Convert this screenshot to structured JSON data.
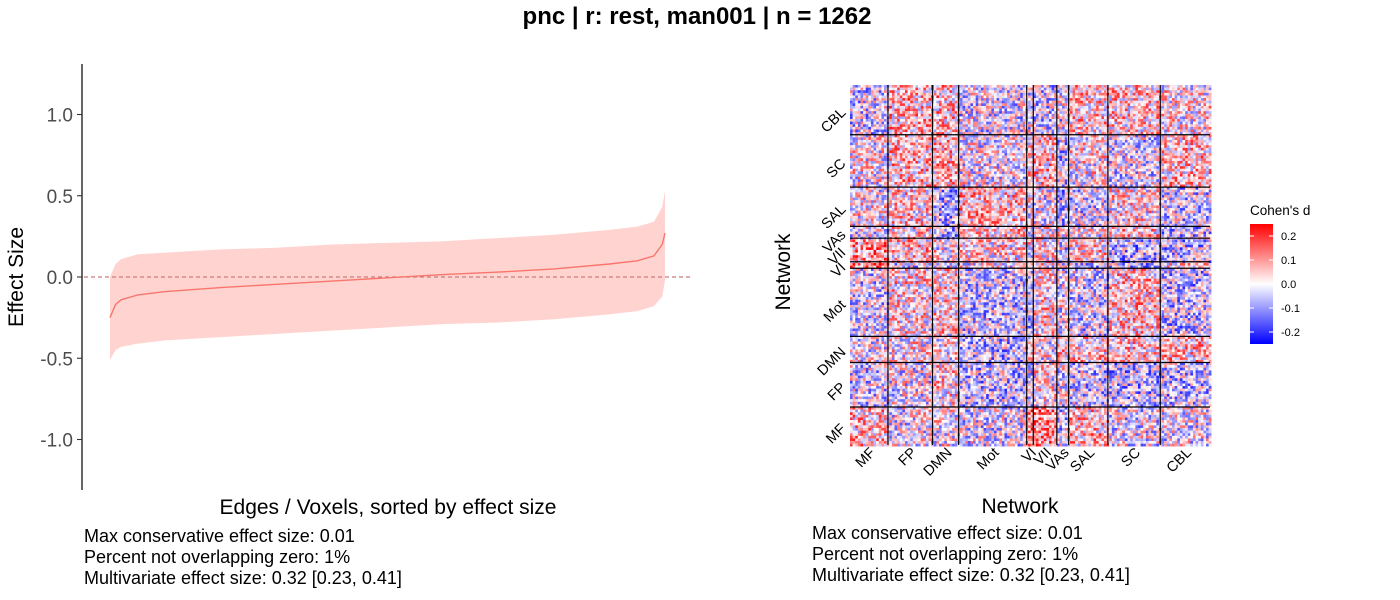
{
  "title": "pnc | r: rest, man001 | n = 1262",
  "chart_data": [
    {
      "type": "line",
      "subtype": "sorted effect sizes with confidence band",
      "xlabel": "Edges / Voxels, sorted by effect size",
      "ylabel": "Effect Size",
      "ylim": [
        -1.3,
        1.3
      ],
      "yticks": [
        "-1.0",
        "-0.5",
        "0.0",
        "0.5",
        "1.0"
      ],
      "ytick_values": [
        -1.0,
        -0.5,
        0.0,
        0.5,
        1.0
      ],
      "reference_line": 0.0,
      "series": [
        {
          "x": [
            0,
            0.01,
            0.02,
            0.05,
            0.1,
            0.2,
            0.3,
            0.4,
            0.5,
            0.6,
            0.7,
            0.8,
            0.9,
            0.95,
            0.98,
            0.995,
            1.0
          ],
          "estimate": [
            -0.25,
            -0.17,
            -0.14,
            -0.11,
            -0.09,
            -0.065,
            -0.045,
            -0.025,
            -0.005,
            0.015,
            0.03,
            0.05,
            0.08,
            0.1,
            0.13,
            0.2,
            0.27
          ],
          "lower": [
            -0.51,
            -0.45,
            -0.43,
            -0.41,
            -0.39,
            -0.37,
            -0.35,
            -0.33,
            -0.31,
            -0.29,
            -0.28,
            -0.26,
            -0.23,
            -0.21,
            -0.18,
            -0.12,
            -0.02
          ],
          "upper": [
            0.0,
            0.08,
            0.11,
            0.14,
            0.15,
            0.17,
            0.18,
            0.2,
            0.21,
            0.22,
            0.24,
            0.26,
            0.29,
            0.31,
            0.34,
            0.43,
            0.53
          ]
        }
      ],
      "colors": {
        "line": "#f8766d",
        "band": "#ffd4d0",
        "refline": "#c97a7a"
      }
    },
    {
      "type": "heatmap",
      "xlabel": "Network",
      "ylabel": "Network",
      "networks_x": [
        "MF",
        "FP",
        "DMN",
        "Mot",
        "VI",
        "VII",
        "VAs",
        "SAL",
        "SC",
        "CBL"
      ],
      "networks_y_bottom_to_top": [
        "MF",
        "FP",
        "DMN",
        "Mot",
        "VI",
        "VII",
        "VAs",
        "SAL",
        "SC",
        "CBL"
      ],
      "network_sizes": [
        29,
        34,
        20,
        52,
        5,
        18,
        9,
        30,
        40,
        38
      ],
      "legend_title": "Cohen's d",
      "legend_ticks": [
        "0.2",
        "0.1",
        "0.0",
        "-0.1",
        "-0.2"
      ],
      "legend_tick_values": [
        0.2,
        0.1,
        0.0,
        -0.1,
        -0.2
      ],
      "range": [
        -0.25,
        0.25
      ],
      "colors": {
        "low": "#0000ff",
        "mid": "#ffffff",
        "high": "#ff0000"
      }
    }
  ],
  "stats_left": {
    "line1": "Max conservative effect size: 0.01",
    "line2": "Percent not overlapping zero: 1%",
    "line3": "Multivariate effect size: 0.32 [0.23, 0.41]"
  },
  "stats_right": {
    "line1": "Max conservative effect size: 0.01",
    "line2": "Percent not overlapping zero: 1%",
    "line3": "Multivariate effect size: 0.32 [0.23, 0.41]"
  }
}
